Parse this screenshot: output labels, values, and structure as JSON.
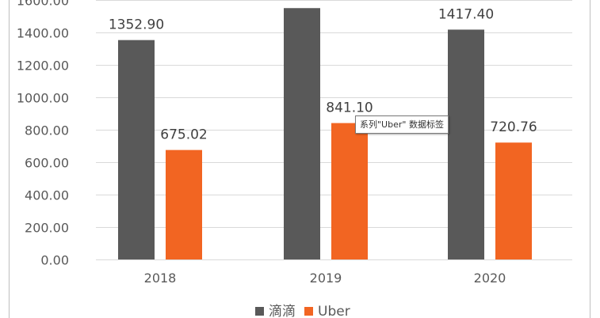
{
  "chart_data": {
    "type": "bar",
    "categories": [
      "2018",
      "2019",
      "2020"
    ],
    "series": [
      {
        "name": "滴滴",
        "color": "#595959",
        "values": [
          1352.9,
          1550.0,
          1417.4
        ],
        "labels": [
          "1352.90",
          "",
          "1417.40"
        ]
      },
      {
        "name": "Uber",
        "color": "#f26522",
        "values": [
          675.02,
          841.1,
          720.76
        ],
        "labels": [
          "675.02",
          "841.10",
          "720.76"
        ]
      }
    ],
    "ylim": [
      0,
      1600
    ],
    "yticks": [
      "0.00",
      "200.00",
      "400.00",
      "600.00",
      "800.00",
      "1000.00",
      "1200.00",
      "1400.00",
      "1600.00"
    ],
    "ytick_values": [
      0,
      200,
      400,
      600,
      800,
      1000,
      1200,
      1400,
      1600
    ],
    "grid": true,
    "legend_position": "bottom"
  },
  "tooltip": {
    "text": "系列\"Uber\" 数据标签"
  },
  "colors": {
    "gridline": "#d9d9d9",
    "frame": "#bfbfbf"
  }
}
